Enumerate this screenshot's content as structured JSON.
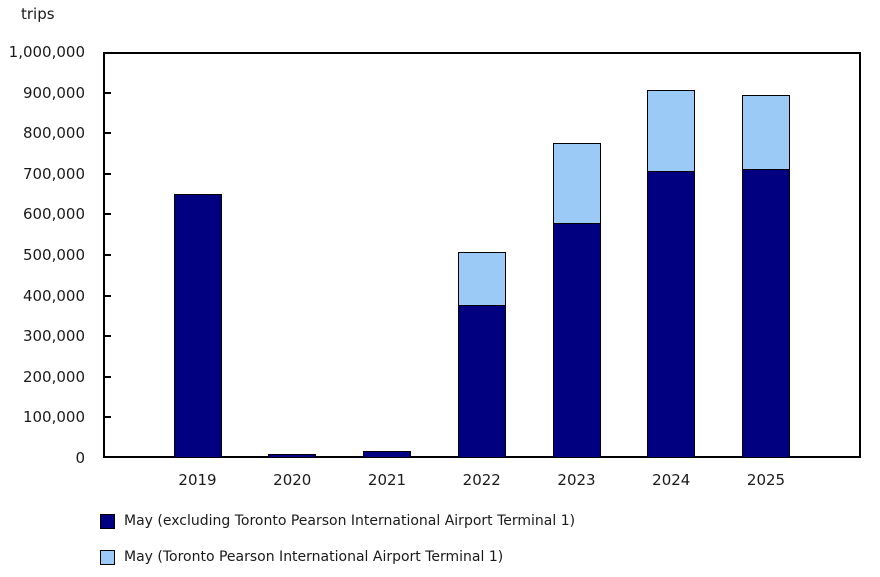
{
  "page": {
    "background_color": "#ffffff",
    "text_color": "#1a1a1a"
  },
  "chart_data": {
    "type": "bar",
    "stacked": true,
    "title": "",
    "xlabel": "",
    "ylabel": "trips",
    "categories": [
      "2019",
      "2020",
      "2021",
      "2022",
      "2023",
      "2024",
      "2025"
    ],
    "series": [
      {
        "name": "May (excluding Toronto Pearson International Airport Terminal 1)",
        "color": "#000080",
        "values": [
          650000,
          11000,
          17000,
          377000,
          580000,
          707000,
          711000
        ]
      },
      {
        "name": "May (Toronto Pearson International Airport Terminal 1)",
        "color": "#9BCAF7",
        "values": [
          0,
          0,
          0,
          131000,
          195000,
          199000,
          184000
        ]
      }
    ],
    "totals": [
      650000,
      11000,
      17000,
      508000,
      775000,
      906000,
      895000
    ],
    "ylim": [
      0,
      1000000
    ],
    "ytick_step": 100000,
    "ytick_labels": [
      "0",
      "100,000",
      "200,000",
      "300,000",
      "400,000",
      "500,000",
      "600,000",
      "700,000",
      "800,000",
      "900,000",
      "1,000,000"
    ],
    "grid": false,
    "bar_outline_color": "#000000",
    "legend_position": "bottom-left"
  }
}
